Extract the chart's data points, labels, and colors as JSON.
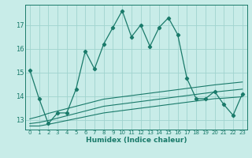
{
  "xlabel": "Humidex (Indice chaleur)",
  "background_color": "#c8ece8",
  "grid_color": "#a0d4ce",
  "line_color": "#1a7a6a",
  "x_values": [
    0,
    1,
    2,
    3,
    4,
    5,
    6,
    7,
    8,
    9,
    10,
    11,
    12,
    13,
    14,
    15,
    16,
    17,
    18,
    19,
    20,
    21,
    22,
    23
  ],
  "main_y": [
    15.1,
    13.9,
    12.85,
    13.3,
    13.3,
    14.3,
    15.9,
    15.15,
    16.2,
    16.9,
    17.6,
    16.5,
    17.0,
    16.1,
    16.9,
    17.3,
    16.6,
    14.75,
    13.9,
    13.9,
    14.2,
    13.65,
    13.2,
    14.1
  ],
  "band_lo": [
    12.75,
    12.75,
    12.82,
    12.9,
    12.98,
    13.06,
    13.14,
    13.22,
    13.3,
    13.35,
    13.4,
    13.45,
    13.5,
    13.55,
    13.6,
    13.65,
    13.7,
    13.75,
    13.8,
    13.85,
    13.9,
    13.92,
    13.95,
    13.98
  ],
  "band_mid": [
    12.85,
    12.9,
    12.98,
    13.08,
    13.18,
    13.28,
    13.38,
    13.48,
    13.58,
    13.63,
    13.68,
    13.73,
    13.78,
    13.83,
    13.88,
    13.93,
    13.98,
    14.03,
    14.08,
    14.13,
    14.18,
    14.22,
    14.26,
    14.3
  ],
  "band_hi": [
    13.05,
    13.15,
    13.28,
    13.38,
    13.48,
    13.58,
    13.68,
    13.78,
    13.88,
    13.93,
    13.98,
    14.03,
    14.08,
    14.13,
    14.18,
    14.23,
    14.28,
    14.33,
    14.38,
    14.43,
    14.48,
    14.52,
    14.56,
    14.6
  ],
  "ylim": [
    12.6,
    17.85
  ],
  "xlim": [
    -0.5,
    23.5
  ],
  "yticks": [
    13,
    14,
    15,
    16,
    17
  ],
  "xticks": [
    0,
    1,
    2,
    3,
    4,
    5,
    6,
    7,
    8,
    9,
    10,
    11,
    12,
    13,
    14,
    15,
    16,
    17,
    18,
    19,
    20,
    21,
    22,
    23
  ]
}
